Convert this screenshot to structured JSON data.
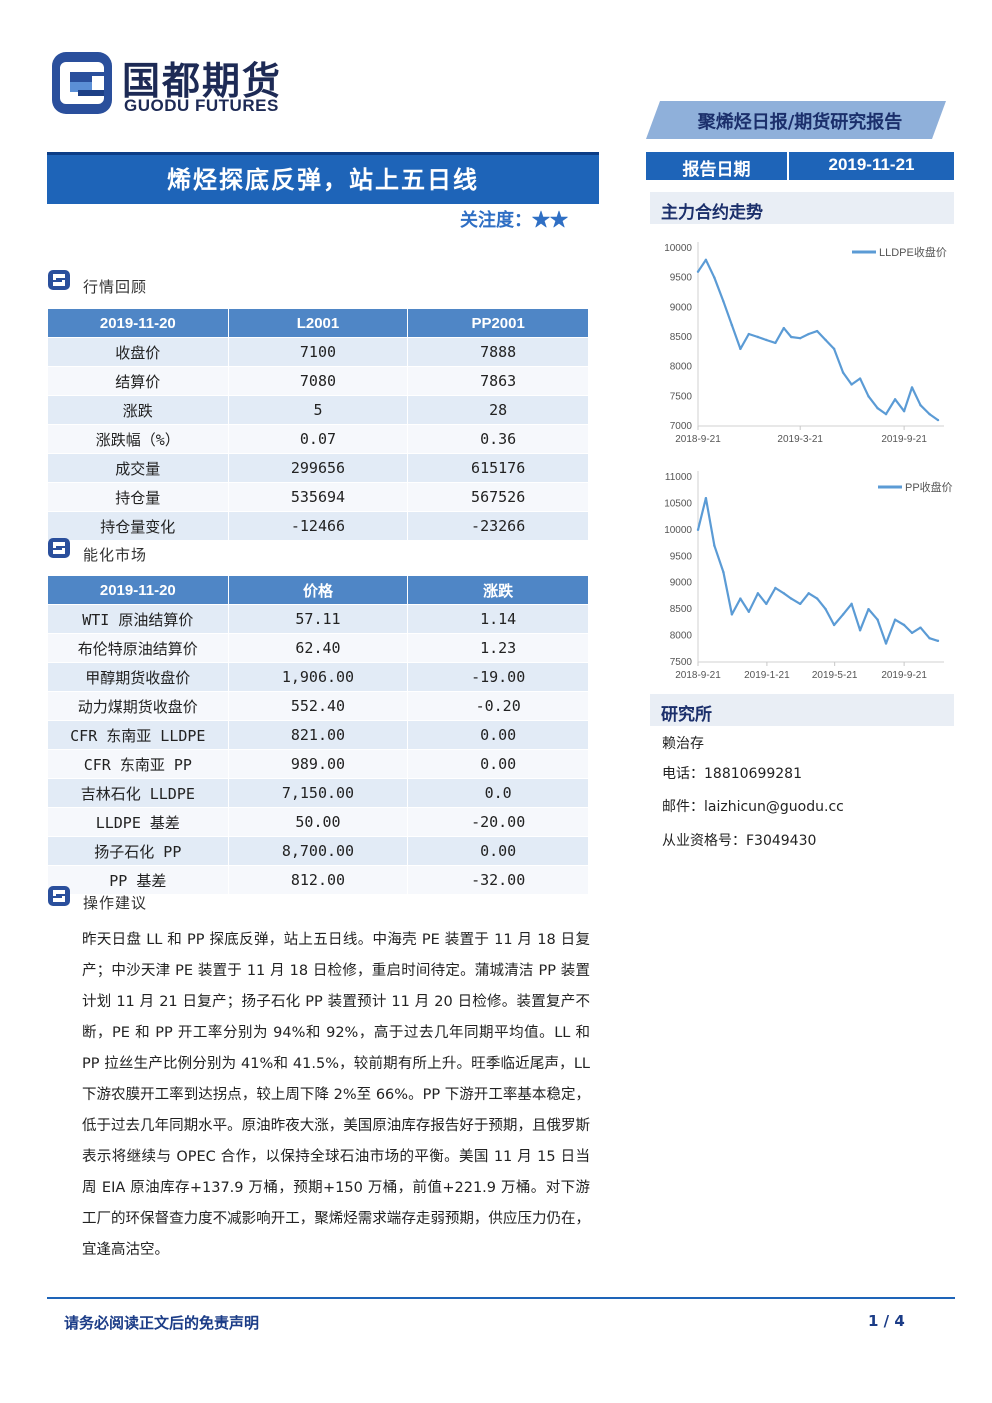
{
  "header": {
    "logo_cn": "国都期货",
    "logo_en": "GUODU FUTURES",
    "report_type": "聚烯烃日报/期货研究报告"
  },
  "title": "烯烃探底反弹，站上五日线",
  "attention": {
    "label": "关注度：",
    "stars": "★★"
  },
  "sections": {
    "market_review": "行情回顾",
    "energy_market": "能化市场",
    "operation": "操作建议"
  },
  "market_table": {
    "headers": [
      "2019-11-20",
      "L2001",
      "PP2001"
    ],
    "rows": [
      [
        "收盘价",
        "7100",
        "7888"
      ],
      [
        "结算价",
        "7080",
        "7863"
      ],
      [
        "涨跌",
        "5",
        "28"
      ],
      [
        "涨跌幅（%）",
        "0.07",
        "0.36"
      ],
      [
        "成交量",
        "299656",
        "615176"
      ],
      [
        "持仓量",
        "535694",
        "567526"
      ],
      [
        "持仓量变化",
        "-12466",
        "-23266"
      ]
    ]
  },
  "energy_table": {
    "headers": [
      "2019-11-20",
      "价格",
      "涨跌"
    ],
    "rows": [
      [
        "WTI 原油结算价",
        "57.11",
        "1.14"
      ],
      [
        "布伦特原油结算价",
        "62.40",
        "1.23"
      ],
      [
        "甲醇期货收盘价",
        "1,906.00",
        "-19.00"
      ],
      [
        "动力煤期货收盘价",
        "552.40",
        "-0.20"
      ],
      [
        "CFR 东南亚 LLDPE",
        "821.00",
        "0.00"
      ],
      [
        "CFR 东南亚 PP",
        "989.00",
        "0.00"
      ],
      [
        "吉林石化 LLDPE",
        "7,150.00",
        "0.0"
      ],
      [
        "LLDPE 基差",
        "50.00",
        "-20.00"
      ],
      [
        "扬子石化 PP",
        "8,700.00",
        "0.00"
      ],
      [
        "PP 基差",
        "812.00",
        "-32.00"
      ]
    ]
  },
  "advice_text": "昨天日盘 LL 和 PP 探底反弹，站上五日线。中海壳 PE 装置于 11 月 18 日复产；中沙天津 PE 装置于 11 月 18 日检修，重启时间待定。蒲城清洁 PP 装置计划 11 月 21 日复产；扬子石化 PP 装置预计 11 月 20 日检修。装置复产不断，PE 和 PP 开工率分别为 94%和 92%，高于过去几年同期平均值。LL 和 PP 拉丝生产比例分别为 41%和 41.5%，较前期有所上升。旺季临近尾声，LL 下游农膜开工率到达拐点，较上周下降 2%至 66%。PP 下游开工率基本稳定，低于过去几年同期水平。原油昨夜大涨，美国原油库存报告好于预期，且俄罗斯表示将继续与 OPEC 合作，以保持全球石油市场的平衡。美国 11 月 15 日当周 EIA 原油库存+137.9 万桶，预期+150 万桶，前值+221.9 万桶。对下游工厂的环保督查力度不减影响开工，聚烯烃需求端存走弱预期，供应压力仍在，宜逢高沽空。",
  "report_date": {
    "label": "报告日期",
    "value": "2019-11-21"
  },
  "main_contract_title": "主力合约走势",
  "research": {
    "title": "研究所",
    "name": "赖治存",
    "phone": "电话：18810699281",
    "email": "邮件：laizhicun@guodu.cc",
    "license": "从业资格号：F3049430"
  },
  "footer": {
    "disclaimer": "请务必阅读正文后的免责声明",
    "page": "1 / 4"
  },
  "colors": {
    "brand_blue": "#1e64b8",
    "table_header": "#4f86c6",
    "line": "#5b9bd5",
    "dark_navy": "#1b2f6b"
  },
  "chart_data": [
    {
      "type": "line",
      "series": [
        {
          "name": "LLDPE收盘价",
          "x": [
            "2018-09-21",
            "2018-10-05",
            "2018-10-20",
            "2018-11-05",
            "2018-11-20",
            "2018-12-05",
            "2018-12-20",
            "2019-01-05",
            "2019-01-20",
            "2019-02-05",
            "2019-02-20",
            "2019-03-05",
            "2019-03-21",
            "2019-04-05",
            "2019-04-20",
            "2019-05-05",
            "2019-05-20",
            "2019-06-05",
            "2019-06-20",
            "2019-07-05",
            "2019-07-20",
            "2019-08-05",
            "2019-08-20",
            "2019-09-05",
            "2019-09-21",
            "2019-10-05",
            "2019-10-20",
            "2019-11-05",
            "2019-11-20"
          ],
          "values": [
            9600,
            9800,
            9500,
            9100,
            8700,
            8300,
            8550,
            8500,
            8450,
            8400,
            8650,
            8500,
            8480,
            8550,
            8600,
            8450,
            8300,
            7900,
            7700,
            7800,
            7500,
            7300,
            7200,
            7450,
            7250,
            7650,
            7350,
            7200,
            7100
          ]
        }
      ],
      "x_ticks": [
        "2018-9-21",
        "2019-3-21",
        "2019-9-21"
      ],
      "y_ticks": [
        "10000",
        "9500",
        "9000",
        "8500",
        "8000",
        "7500",
        "7000"
      ],
      "ylim": [
        7000,
        10000
      ]
    },
    {
      "type": "line",
      "series": [
        {
          "name": "PP收盘价",
          "x": [
            "2018-09-21",
            "2018-10-05",
            "2018-10-20",
            "2018-11-05",
            "2018-11-20",
            "2018-12-05",
            "2018-12-20",
            "2019-01-05",
            "2019-01-20",
            "2019-02-05",
            "2019-02-20",
            "2019-03-05",
            "2019-03-21",
            "2019-04-05",
            "2019-04-20",
            "2019-05-05",
            "2019-05-20",
            "2019-06-05",
            "2019-06-20",
            "2019-07-05",
            "2019-07-20",
            "2019-08-05",
            "2019-08-20",
            "2019-09-05",
            "2019-09-21",
            "2019-10-05",
            "2019-10-20",
            "2019-11-05",
            "2019-11-20"
          ],
          "values": [
            10000,
            10600,
            9700,
            9200,
            8400,
            8700,
            8450,
            8800,
            8600,
            8900,
            8800,
            8700,
            8600,
            8800,
            8700,
            8500,
            8200,
            8400,
            8600,
            8100,
            8500,
            8300,
            7850,
            8300,
            8200,
            8050,
            8150,
            7950,
            7900
          ]
        }
      ],
      "x_ticks": [
        "2018-9-21",
        "2019-1-21",
        "2019-5-21",
        "2019-9-21"
      ],
      "y_ticks": [
        "11000",
        "10500",
        "10000",
        "9500",
        "9000",
        "8500",
        "8000",
        "7500"
      ],
      "ylim": [
        7500,
        11000
      ]
    }
  ]
}
